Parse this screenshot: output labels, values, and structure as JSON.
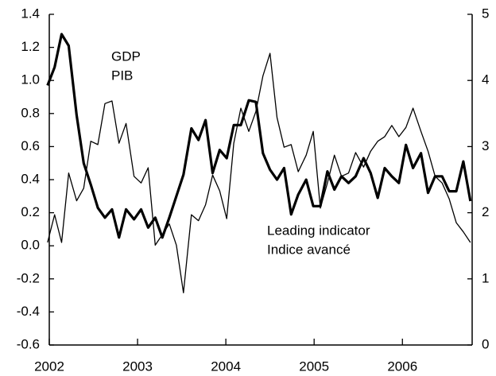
{
  "chart_data": {
    "type": "line",
    "x": [
      2001.98,
      2002.06,
      2002.14,
      2002.22,
      2002.31,
      2002.39,
      2002.47,
      2002.55,
      2002.63,
      2002.71,
      2002.79,
      2002.87,
      2002.96,
      2003.04,
      2003.12,
      2003.2,
      2003.28,
      2003.36,
      2003.44,
      2003.52,
      2003.61,
      2003.69,
      2003.77,
      2003.85,
      2003.93,
      2004.01,
      2004.09,
      2004.17,
      2004.26,
      2004.34,
      2004.42,
      2004.5,
      2004.58,
      2004.66,
      2004.74,
      2004.82,
      2004.91,
      2004.99,
      2005.07,
      2005.15,
      2005.23,
      2005.31,
      2005.39,
      2005.47,
      2005.56,
      2005.64,
      2005.72,
      2005.8,
      2005.88,
      2005.96,
      2006.04,
      2006.12,
      2006.21,
      2006.29,
      2006.37,
      2006.45,
      2006.53,
      2006.61,
      2006.69,
      2006.77
    ],
    "series": [
      {
        "name": [
          "GDP",
          "PIB"
        ],
        "color": "#000000",
        "width": 3.2,
        "values": [
          0.97,
          1.08,
          1.28,
          1.21,
          0.79,
          0.5,
          0.37,
          0.23,
          0.17,
          0.22,
          0.05,
          0.22,
          0.16,
          0.22,
          0.11,
          0.17,
          0.05,
          0.17,
          0.3,
          0.43,
          0.71,
          0.64,
          0.76,
          0.44,
          0.58,
          0.53,
          0.73,
          0.73,
          0.88,
          0.87,
          0.56,
          0.46,
          0.4,
          0.47,
          0.19,
          0.31,
          0.4,
          0.24,
          0.24,
          0.45,
          0.34,
          0.42,
          0.38,
          0.42,
          0.53,
          0.44,
          0.29,
          0.47,
          0.42,
          0.38,
          0.61,
          0.47,
          0.56,
          0.32,
          0.42,
          0.42,
          0.33,
          0.33,
          0.51,
          0.27
        ]
      },
      {
        "name": [
          "Leading indicator",
          "Indice avancé"
        ],
        "color": "#000000",
        "width": 1.3,
        "axis": "y2",
        "values": [
          1.55,
          1.97,
          1.55,
          2.6,
          2.18,
          2.37,
          3.08,
          3.03,
          3.65,
          3.69,
          3.05,
          3.35,
          2.55,
          2.45,
          2.68,
          1.51,
          1.67,
          1.83,
          1.51,
          0.79,
          1.97,
          1.88,
          2.12,
          2.57,
          2.33,
          1.91,
          3.05,
          3.58,
          3.23,
          3.53,
          4.07,
          4.41,
          3.44,
          2.99,
          3.03,
          2.62,
          2.87,
          3.23,
          2.07,
          2.45,
          2.87,
          2.55,
          2.6,
          2.91,
          2.69,
          2.93,
          3.08,
          3.15,
          3.32,
          3.15,
          3.29,
          3.58,
          3.23,
          2.93,
          2.55,
          2.45,
          2.21,
          1.85,
          1.71,
          1.55
        ]
      }
    ],
    "xlim": [
      2002,
      2006.79
    ],
    "xticks": [
      2002,
      2003,
      2004,
      2005,
      2006
    ],
    "ylim": [
      -0.6,
      1.4
    ],
    "yticks": [
      {
        "value": -0.6,
        "label": "-0.6"
      },
      {
        "value": -0.4,
        "label": "-0.4"
      },
      {
        "value": -0.2,
        "label": "-0.2"
      },
      {
        "value": 0,
        "label": "0.0"
      },
      0.2,
      0.4,
      0.6,
      0.8,
      {
        "value": 1,
        "label": "1.0"
      },
      1.2,
      1.4
    ],
    "y2lim": [
      0,
      5
    ],
    "y2ticks": [
      0,
      1,
      2,
      3,
      4,
      5
    ]
  }
}
